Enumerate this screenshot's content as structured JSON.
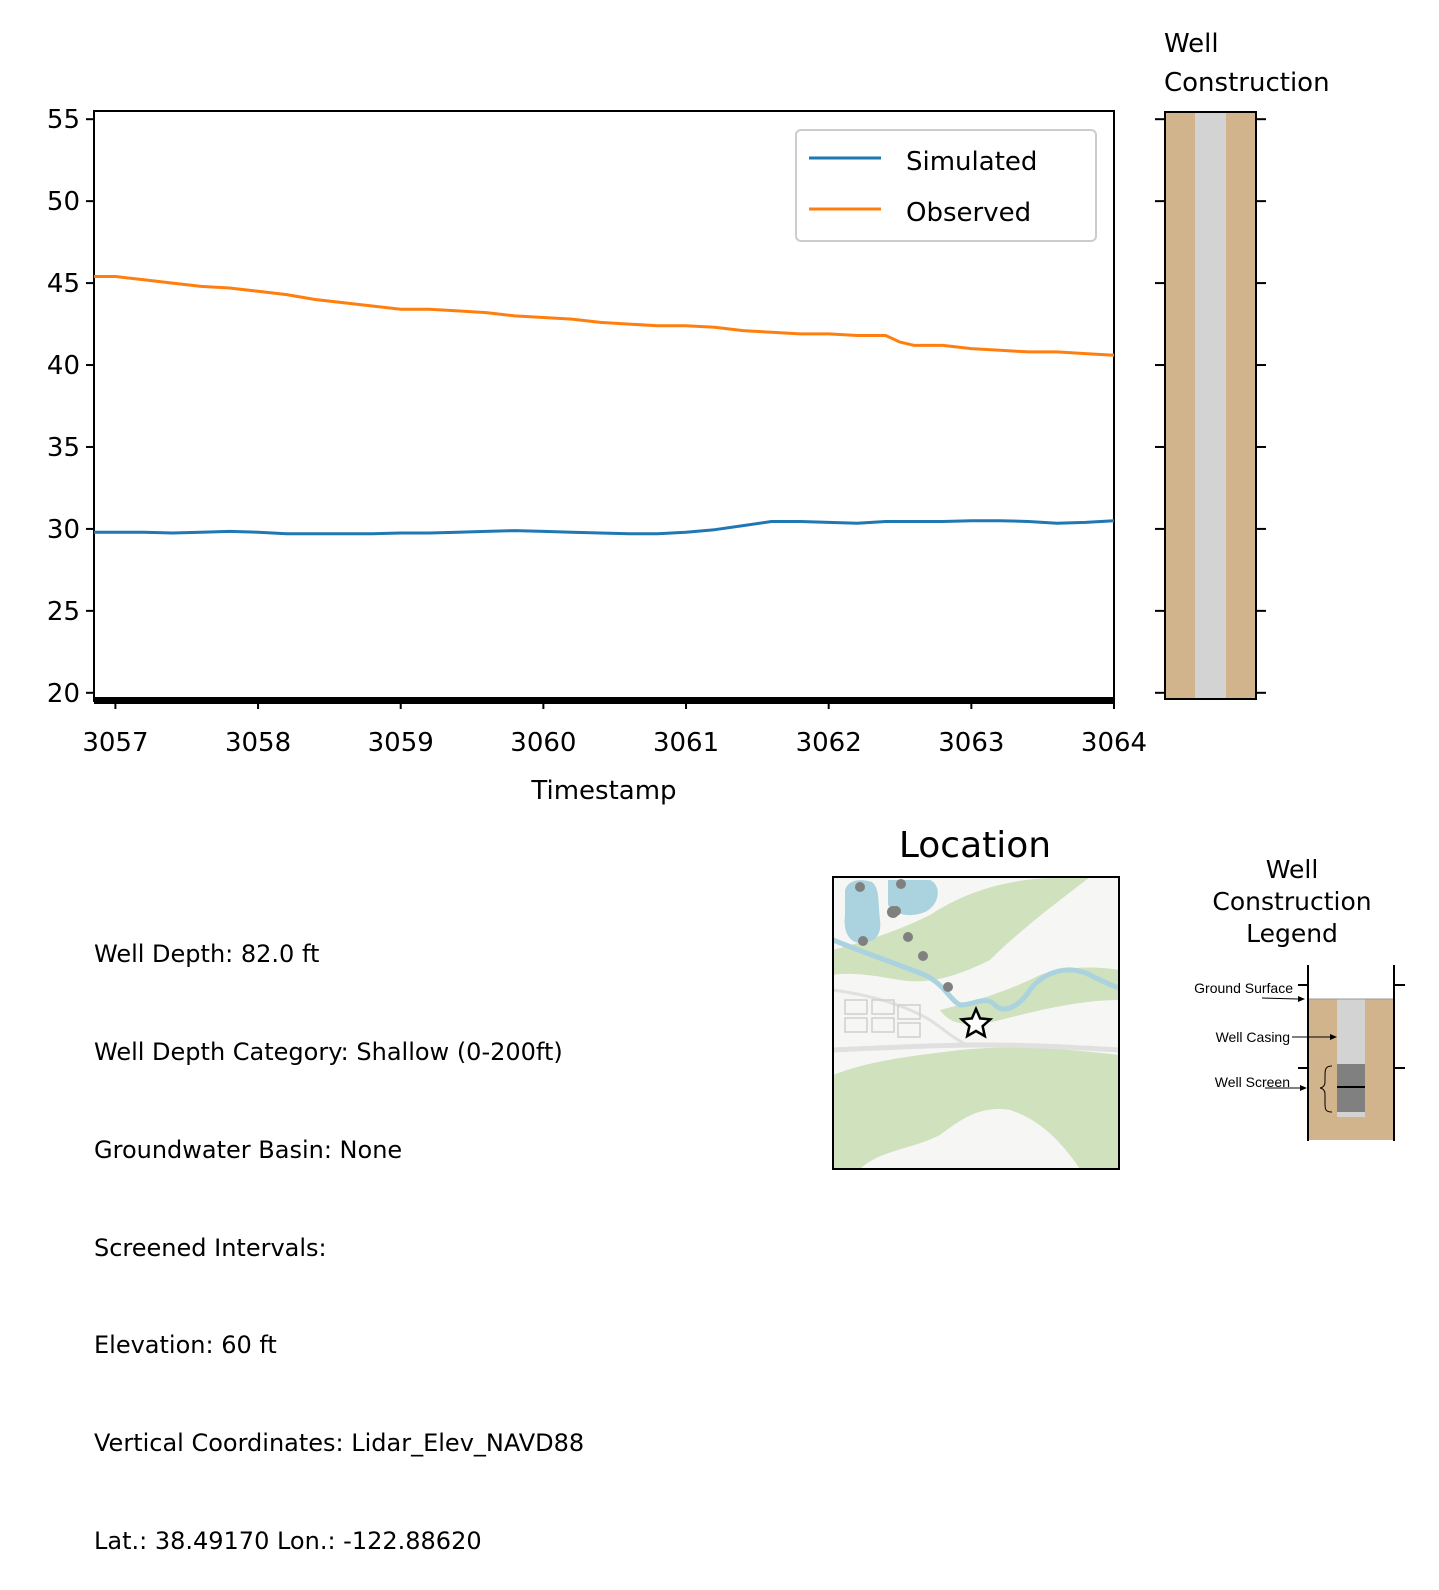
{
  "chart_data": {
    "type": "line",
    "title": "",
    "xlabel": "Timestamp",
    "ylabel": "",
    "xlim": [
      3056.85,
      3064.0
    ],
    "ylim": [
      19.5,
      55.5
    ],
    "xticks": [
      3057,
      3058,
      3059,
      3060,
      3061,
      3062,
      3063,
      3064
    ],
    "yticks": [
      20,
      25,
      30,
      35,
      40,
      45,
      50,
      55
    ],
    "grid": false,
    "legend": {
      "position": "top-right",
      "entries": [
        "Simulated",
        "Observed"
      ]
    },
    "series": [
      {
        "name": "Simulated",
        "color": "#1f77b4",
        "x": [
          3056.85,
          3057.0,
          3057.2,
          3057.4,
          3057.6,
          3057.8,
          3058.0,
          3058.2,
          3058.4,
          3058.6,
          3058.8,
          3059.0,
          3059.2,
          3059.4,
          3059.6,
          3059.8,
          3060.0,
          3060.2,
          3060.4,
          3060.6,
          3060.8,
          3061.0,
          3061.2,
          3061.4,
          3061.6,
          3061.8,
          3062.0,
          3062.2,
          3062.4,
          3062.6,
          3062.8,
          3063.0,
          3063.2,
          3063.4,
          3063.6,
          3063.8,
          3064.0
        ],
        "y": [
          29.8,
          29.8,
          29.8,
          29.75,
          29.8,
          29.85,
          29.8,
          29.7,
          29.7,
          29.7,
          29.7,
          29.75,
          29.75,
          29.8,
          29.85,
          29.9,
          29.85,
          29.8,
          29.75,
          29.7,
          29.7,
          29.8,
          29.95,
          30.2,
          30.45,
          30.45,
          30.4,
          30.35,
          30.45,
          30.45,
          30.45,
          30.5,
          30.5,
          30.45,
          30.35,
          30.4,
          30.5
        ]
      },
      {
        "name": "Observed",
        "color": "#ff7f0e",
        "x": [
          3056.85,
          3057.0,
          3057.2,
          3057.4,
          3057.6,
          3057.8,
          3058.0,
          3058.2,
          3058.4,
          3058.6,
          3058.8,
          3059.0,
          3059.2,
          3059.4,
          3059.6,
          3059.8,
          3060.0,
          3060.2,
          3060.4,
          3060.6,
          3060.8,
          3061.0,
          3061.2,
          3061.4,
          3061.6,
          3061.8,
          3062.0,
          3062.2,
          3062.4,
          3062.5,
          3062.6,
          3062.8,
          3063.0,
          3063.2,
          3063.4,
          3063.6,
          3063.8,
          3064.0
        ],
        "y": [
          45.4,
          45.4,
          45.2,
          45.0,
          44.8,
          44.7,
          44.5,
          44.3,
          44.0,
          43.8,
          43.6,
          43.4,
          43.4,
          43.3,
          43.2,
          43.0,
          42.9,
          42.8,
          42.6,
          42.5,
          42.4,
          42.4,
          42.3,
          42.1,
          42.0,
          41.9,
          41.9,
          41.8,
          41.8,
          41.4,
          41.2,
          41.2,
          41.0,
          40.9,
          40.8,
          40.8,
          40.7,
          40.6
        ]
      }
    ]
  },
  "well_construction": {
    "title_line1": "Well",
    "title_line2": "Construction",
    "colors": {
      "soil": "#d2b48c",
      "casing": "#d3d3d3",
      "screen": "#808080",
      "outline": "#000000"
    }
  },
  "info": {
    "lines": [
      "Well Depth: 82.0 ft",
      "Well Depth Category: Shallow (0-200ft)",
      "Groundwater Basin: None",
      "Screened Intervals:",
      "Elevation: 60 ft",
      "Vertical Coordinates: Lidar_Elev_NAVD88",
      "Lat.: 38.49170 Lon.: -122.88620"
    ]
  },
  "location": {
    "title": "Location",
    "marker_icon": "star-icon",
    "colors": {
      "water": "#aad3df",
      "vegetation": "#cfe1bd",
      "land": "#f6f6f4",
      "road": "#ffffff",
      "point": "#808080"
    }
  },
  "legend_panel": {
    "title_line1": "Well",
    "title_line2": "Construction",
    "title_line3": "Legend",
    "ground_surface": "Ground Surface",
    "well_casing": "Well Casing",
    "well_screen": "Well Screen"
  },
  "colors": {
    "simulated": "#1f77b4",
    "observed": "#ff7f0e"
  }
}
